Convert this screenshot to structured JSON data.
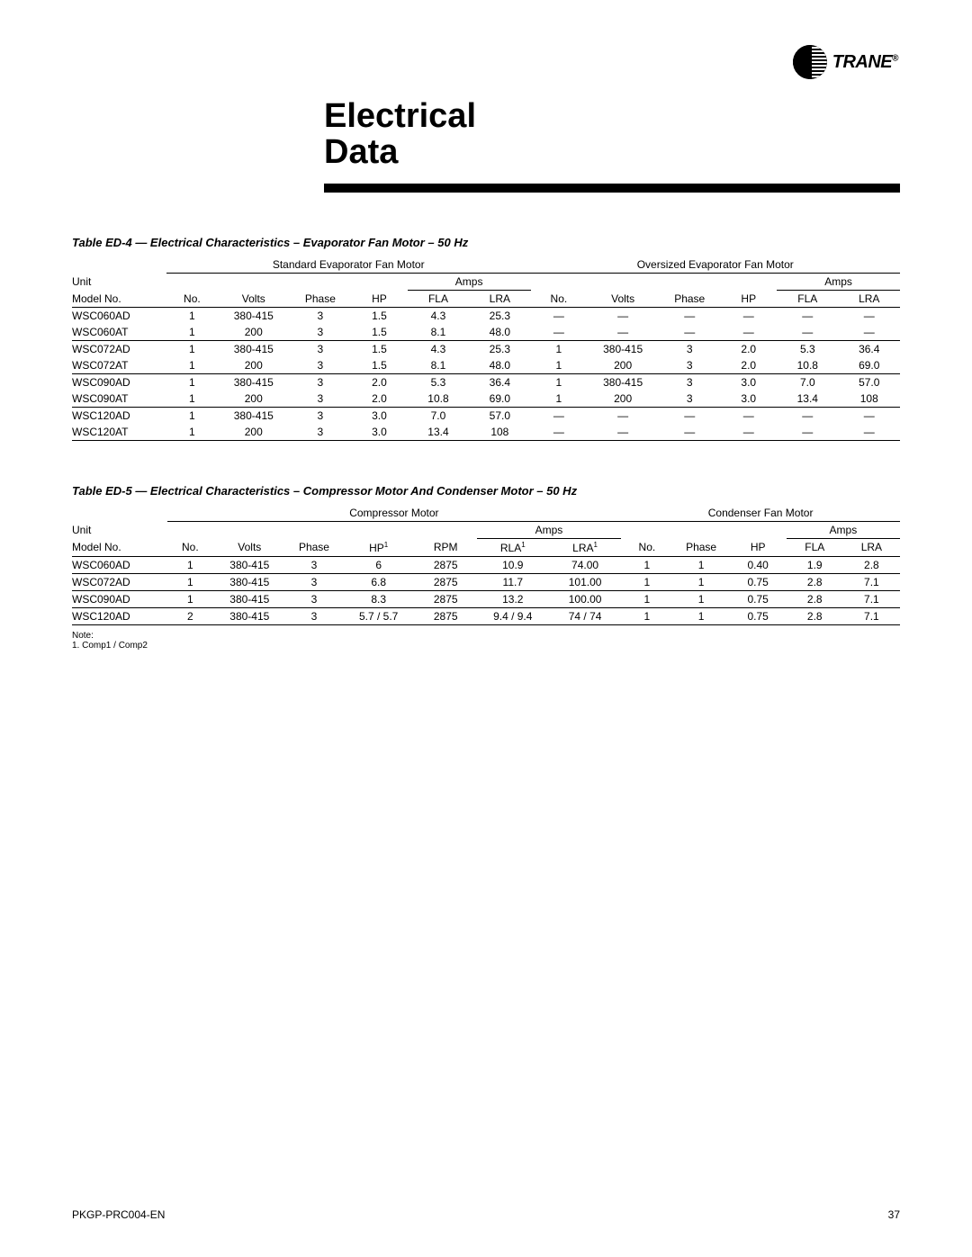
{
  "brand": {
    "name": "TRANE",
    "reg": "®"
  },
  "title_line1": "Electrical",
  "title_line2": "Data",
  "table1": {
    "caption": "Table ED-4 — Electrical Characteristics – Evaporator Fan Motor – 50 Hz",
    "group_std": "Standard Evaporator Fan Motor",
    "group_ovr": "Oversized Evaporator Fan Motor",
    "amps_label": "Amps",
    "unit_label": "Unit",
    "headers": {
      "model": "Model No.",
      "no": "No.",
      "volts": "Volts",
      "phase": "Phase",
      "hp": "HP",
      "fla": "FLA",
      "lra": "LRA"
    },
    "rows": [
      {
        "model": "WSC060AD",
        "std": {
          "no": "1",
          "volts": "380-415",
          "phase": "3",
          "hp": "1.5",
          "fla": "4.3",
          "lra": "25.3"
        },
        "ovr": {
          "no": "—",
          "volts": "—",
          "phase": "—",
          "hp": "—",
          "fla": "—",
          "lra": "—"
        }
      },
      {
        "model": "WSC060AT",
        "std": {
          "no": "1",
          "volts": "200",
          "phase": "3",
          "hp": "1.5",
          "fla": "8.1",
          "lra": "48.0"
        },
        "ovr": {
          "no": "—",
          "volts": "—",
          "phase": "—",
          "hp": "—",
          "fla": "—",
          "lra": "—"
        }
      },
      {
        "model": "WSC072AD",
        "std": {
          "no": "1",
          "volts": "380-415",
          "phase": "3",
          "hp": "1.5",
          "fla": "4.3",
          "lra": "25.3"
        },
        "ovr": {
          "no": "1",
          "volts": "380-415",
          "phase": "3",
          "hp": "2.0",
          "fla": "5.3",
          "lra": "36.4"
        }
      },
      {
        "model": "WSC072AT",
        "std": {
          "no": "1",
          "volts": "200",
          "phase": "3",
          "hp": "1.5",
          "fla": "8.1",
          "lra": "48.0"
        },
        "ovr": {
          "no": "1",
          "volts": "200",
          "phase": "3",
          "hp": "2.0",
          "fla": "10.8",
          "lra": "69.0"
        }
      },
      {
        "model": "WSC090AD",
        "std": {
          "no": "1",
          "volts": "380-415",
          "phase": "3",
          "hp": "2.0",
          "fla": "5.3",
          "lra": "36.4"
        },
        "ovr": {
          "no": "1",
          "volts": "380-415",
          "phase": "3",
          "hp": "3.0",
          "fla": "7.0",
          "lra": "57.0"
        }
      },
      {
        "model": "WSC090AT",
        "std": {
          "no": "1",
          "volts": "200",
          "phase": "3",
          "hp": "2.0",
          "fla": "10.8",
          "lra": "69.0"
        },
        "ovr": {
          "no": "1",
          "volts": "200",
          "phase": "3",
          "hp": "3.0",
          "fla": "13.4",
          "lra": "108"
        }
      },
      {
        "model": "WSC120AD",
        "std": {
          "no": "1",
          "volts": "380-415",
          "phase": "3",
          "hp": "3.0",
          "fla": "7.0",
          "lra": "57.0"
        },
        "ovr": {
          "no": "—",
          "volts": "—",
          "phase": "—",
          "hp": "—",
          "fla": "—",
          "lra": "—"
        }
      },
      {
        "model": "WSC120AT",
        "std": {
          "no": "1",
          "volts": "200",
          "phase": "3",
          "hp": "3.0",
          "fla": "13.4",
          "lra": "108"
        },
        "ovr": {
          "no": "—",
          "volts": "—",
          "phase": "—",
          "hp": "—",
          "fla": "—",
          "lra": "—"
        }
      }
    ],
    "group_breaks_after": [
      1,
      3,
      5
    ]
  },
  "table2": {
    "caption": "Table ED-5 — Electrical Characteristics – Compressor Motor And Condenser Motor – 50 Hz",
    "group_comp": "Compressor Motor",
    "group_cond": "Condenser Fan Motor",
    "amps_label": "Amps",
    "unit_label": "Unit",
    "headers": {
      "model": "Model No.",
      "no": "No.",
      "volts": "Volts",
      "phase": "Phase",
      "hp": "HP",
      "hp1": "HP¹",
      "rpm": "RPM",
      "rla": "RLA¹",
      "lra1": "LRA¹",
      "fla": "FLA",
      "lra": "LRA"
    },
    "rows": [
      {
        "model": "WSC060AD",
        "comp": {
          "no": "1",
          "volts": "380-415",
          "phase": "3",
          "hp": "6",
          "rpm": "2875",
          "rla": "10.9",
          "lra": "74.00"
        },
        "cond": {
          "no": "1",
          "phase": "1",
          "hp": "0.40",
          "fla": "1.9",
          "lra": "2.8"
        }
      },
      {
        "model": "WSC072AD",
        "comp": {
          "no": "1",
          "volts": "380-415",
          "phase": "3",
          "hp": "6.8",
          "rpm": "2875",
          "rla": "11.7",
          "lra": "101.00"
        },
        "cond": {
          "no": "1",
          "phase": "1",
          "hp": "0.75",
          "fla": "2.8",
          "lra": "7.1"
        }
      },
      {
        "model": "WSC090AD",
        "comp": {
          "no": "1",
          "volts": "380-415",
          "phase": "3",
          "hp": "8.3",
          "rpm": "2875",
          "rla": "13.2",
          "lra": "100.00"
        },
        "cond": {
          "no": "1",
          "phase": "1",
          "hp": "0.75",
          "fla": "2.8",
          "lra": "7.1"
        }
      },
      {
        "model": "WSC120AD",
        "comp": {
          "no": "2",
          "volts": "380-415",
          "phase": "3",
          "hp": "5.7 / 5.7",
          "rpm": "2875",
          "rla": "9.4 / 9.4",
          "lra": "74 / 74"
        },
        "cond": {
          "no": "1",
          "phase": "1",
          "hp": "0.75",
          "fla": "2.8",
          "lra": "7.1"
        }
      }
    ],
    "note_label": "Note:",
    "note_1": "1. Comp1 / Comp2"
  },
  "footer": {
    "doc": "PKGP-PRC004-EN",
    "page": "37"
  }
}
